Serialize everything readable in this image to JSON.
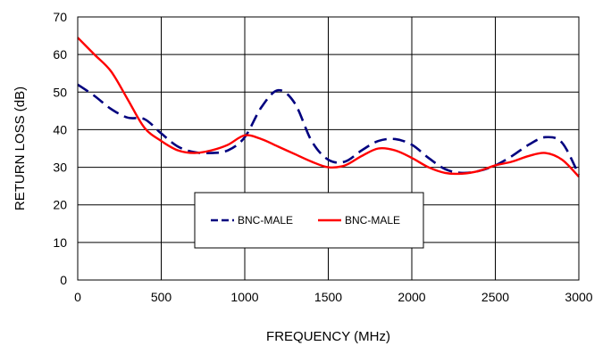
{
  "chart_data": {
    "type": "line",
    "title": "",
    "xlabel": "FREQUENCY (MHz)",
    "ylabel": "RETURN LOSS (dB)",
    "xlim": [
      0,
      3000
    ],
    "ylim": [
      0,
      70
    ],
    "x_ticks": [
      0,
      500,
      1000,
      1500,
      2000,
      2500,
      3000
    ],
    "y_ticks": [
      0,
      10,
      20,
      30,
      40,
      50,
      60,
      70
    ],
    "grid": true,
    "legend_position": "center-bottom",
    "series": [
      {
        "name": "BNC-MALE",
        "color": "#00007f",
        "style": "dashed",
        "points": [
          [
            0,
            52
          ],
          [
            100,
            49
          ],
          [
            200,
            45.5
          ],
          [
            300,
            43.2
          ],
          [
            400,
            42.8
          ],
          [
            500,
            39
          ],
          [
            600,
            35.5
          ],
          [
            700,
            34
          ],
          [
            800,
            33.8
          ],
          [
            900,
            34.5
          ],
          [
            1000,
            38
          ],
          [
            1100,
            46
          ],
          [
            1200,
            50.5
          ],
          [
            1300,
            47
          ],
          [
            1400,
            37
          ],
          [
            1500,
            32
          ],
          [
            1600,
            31.5
          ],
          [
            1700,
            34.5
          ],
          [
            1800,
            37
          ],
          [
            1900,
            37.5
          ],
          [
            2000,
            36
          ],
          [
            2100,
            32.5
          ],
          [
            2200,
            29.5
          ],
          [
            2300,
            28.5
          ],
          [
            2400,
            29
          ],
          [
            2500,
            30.5
          ],
          [
            2600,
            33
          ],
          [
            2700,
            36
          ],
          [
            2800,
            38
          ],
          [
            2900,
            36.5
          ],
          [
            3000,
            28
          ]
        ]
      },
      {
        "name": "BNC-MALE",
        "color": "#ff0000",
        "style": "solid",
        "points": [
          [
            0,
            64.5
          ],
          [
            100,
            60
          ],
          [
            200,
            55.5
          ],
          [
            300,
            48
          ],
          [
            400,
            40.5
          ],
          [
            500,
            37
          ],
          [
            600,
            34.5
          ],
          [
            700,
            33.8
          ],
          [
            800,
            34.5
          ],
          [
            900,
            36
          ],
          [
            1000,
            38.5
          ],
          [
            1100,
            37.5
          ],
          [
            1200,
            35.5
          ],
          [
            1300,
            33.5
          ],
          [
            1400,
            31.5
          ],
          [
            1500,
            30
          ],
          [
            1600,
            30.5
          ],
          [
            1700,
            33
          ],
          [
            1800,
            35
          ],
          [
            1900,
            34.5
          ],
          [
            2000,
            32.5
          ],
          [
            2100,
            30
          ],
          [
            2200,
            28.5
          ],
          [
            2300,
            28.3
          ],
          [
            2400,
            29
          ],
          [
            2500,
            30.5
          ],
          [
            2600,
            31.5
          ],
          [
            2700,
            33
          ],
          [
            2800,
            33.8
          ],
          [
            2900,
            32
          ],
          [
            3000,
            27.5
          ]
        ]
      }
    ]
  }
}
